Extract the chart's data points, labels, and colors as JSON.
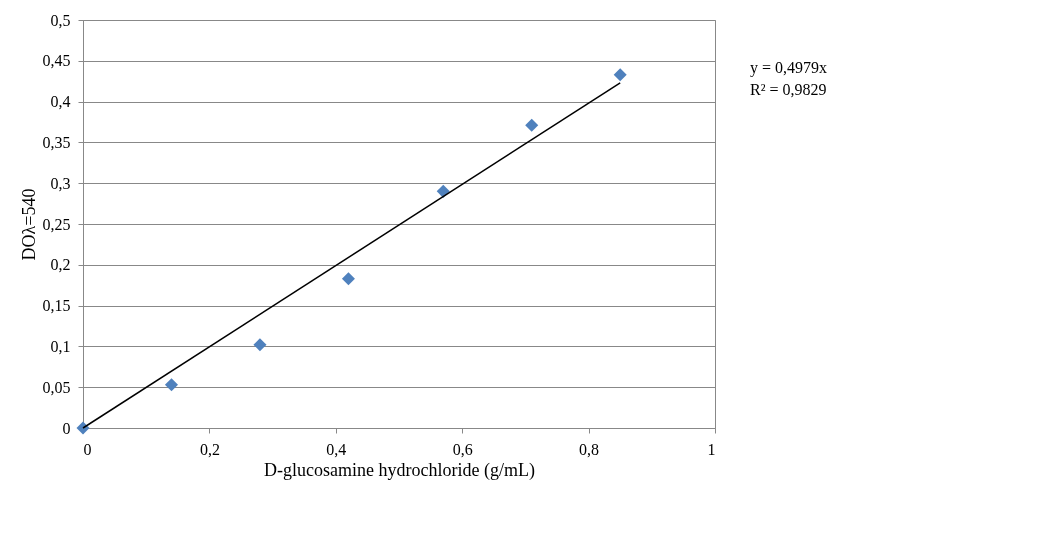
{
  "chart_data": {
    "type": "scatter",
    "xlabel": "D-glucosamine hydrochloride (g/mL)",
    "ylabel": "DOλ=540",
    "xlim": [
      0,
      1
    ],
    "ylim": [
      0,
      0.5
    ],
    "xticks": [
      0,
      {
        "value": 0.2,
        "label": "0,2"
      },
      {
        "value": 0.4,
        "label": "0,4"
      },
      {
        "value": 0.6,
        "label": "0,6"
      },
      {
        "value": 0.8,
        "label": "0,8"
      },
      1
    ],
    "yticks": [
      0,
      {
        "value": 0.05,
        "label": "0,05"
      },
      {
        "value": 0.1,
        "label": "0,1"
      },
      {
        "value": 0.15,
        "label": "0,15"
      },
      {
        "value": 0.2,
        "label": "0,2"
      },
      {
        "value": 0.25,
        "label": "0,25"
      },
      {
        "value": 0.3,
        "label": "0,3"
      },
      {
        "value": 0.35,
        "label": "0,35"
      },
      {
        "value": 0.4,
        "label": "0,4"
      },
      {
        "value": 0.45,
        "label": "0,45"
      },
      {
        "value": 0.5,
        "label": "0,5"
      }
    ],
    "grid": "y",
    "series": [
      {
        "marker": "diamond",
        "color": "#4f81bd",
        "x": [
          0,
          0.14,
          0.28,
          0.42,
          0.57,
          0.71,
          0.85
        ],
        "values": [
          0,
          0.053,
          0.102,
          0.183,
          0.29,
          0.371,
          0.433
        ]
      },
      {
        "type": "line",
        "color": "#000000",
        "line_style": "solid",
        "x": [
          0,
          0.85
        ],
        "values": [
          0,
          0.423
        ]
      }
    ],
    "annotations": [
      "y = 0,4979x",
      "R² = 0,9829"
    ]
  }
}
